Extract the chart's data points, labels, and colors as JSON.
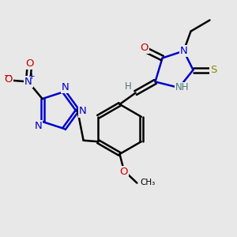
{
  "bg_color": "#e8e8e8",
  "lw": 1.8,
  "colors": {
    "black": "#000000",
    "blue": "#0000cc",
    "red": "#cc0000",
    "teal": "#4a7a7a",
    "olive": "#888800"
  },
  "xlim": [
    0,
    10
  ],
  "ylim": [
    0,
    10
  ]
}
